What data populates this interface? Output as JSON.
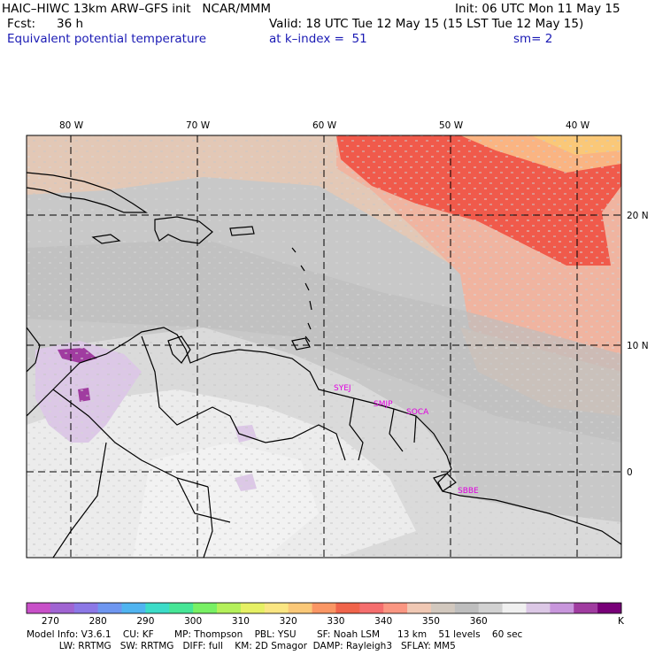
{
  "header": {
    "model_title": "HAIC–HIWC 13km ARW–GFS init   NCAR/MMM",
    "forecast_label": "Fcst:",
    "forecast_hours": "36 h",
    "field_name": "Equivalent potential temperature",
    "init_time": "Init: 06 UTC Mon 11 May 15",
    "valid_time": "Valid: 18 UTC Tue 12 May 15 (15 LST Tue 12 May 15)",
    "level": "at k–index =  51",
    "smoothing": "sm= 2"
  },
  "map": {
    "lon_labels": [
      "80 W",
      "70 W",
      "60 W",
      "50 W",
      "40 W"
    ],
    "lat_labels": [
      "20 N",
      "10 N",
      "0"
    ],
    "stations": [
      "SYEJ",
      "SMJP",
      "SOCA",
      "SBBE"
    ]
  },
  "colorbar": {
    "colors": [
      "#c850c8",
      "#a064d2",
      "#8c78e6",
      "#6e96f0",
      "#50b4f0",
      "#3cdcc8",
      "#46e696",
      "#78f064",
      "#b4f05a",
      "#e6f064",
      "#fae682",
      "#fac878",
      "#fa9664",
      "#f0644b",
      "#f56e6e",
      "#fa9682",
      "#f0c8b4",
      "#d2c8be",
      "#bebebe",
      "#d2d2d2",
      "#f0f0f0",
      "#dcc8e6",
      "#c896dc",
      "#a03ca0",
      "#780078"
    ],
    "tick_labels": [
      "270",
      "280",
      "290",
      "300",
      "310",
      "320",
      "330",
      "340",
      "350",
      "360"
    ],
    "unit": "K"
  },
  "footer": {
    "line1": "Model Info: V3.6.1    CU: KF       MP: Thompson    PBL: YSU       SF: Noah LSM      13 km    51 levels    60 sec",
    "line2": "           LW: RRTMG   SW: RRTMG   DIFF: full    KM: 2D Smagor  DAMP: Rayleigh3   SFLAY: MM5"
  }
}
